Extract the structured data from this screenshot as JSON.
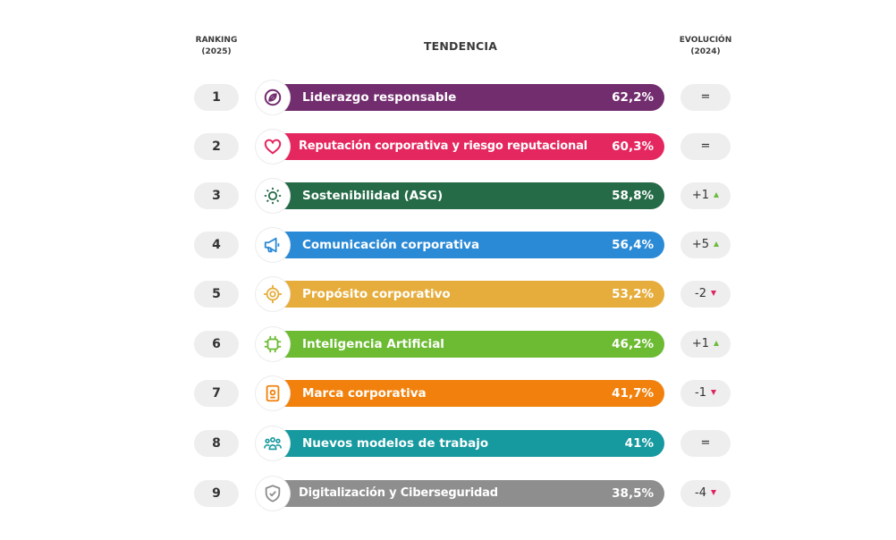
{
  "headers": {
    "ranking_line1": "RANKING",
    "ranking_line2": "(2025)",
    "trend": "TENDENCIA",
    "evolution_line1": "EVOLUCIÓN",
    "evolution_line2": "(2024)"
  },
  "chart_data": {
    "type": "bar",
    "title": "TENDENCIA",
    "categories": [
      "Liderazgo responsable",
      "Reputación corporativa y riesgo reputacional",
      "Sostenibilidad (ASG)",
      "Comunicación corporativa",
      "Propósito corporativo",
      "Inteligencia Artificial",
      "Marca corporativa",
      "Nuevos modelos de trabajo",
      "Digitalización y Ciberseguridad"
    ],
    "values": [
      62.2,
      60.3,
      58.8,
      56.4,
      53.2,
      46.2,
      41.7,
      41,
      38.5
    ],
    "value_labels": [
      "62,2%",
      "60,3%",
      "58,8%",
      "56,4%",
      "53,2%",
      "46,2%",
      "41,7%",
      "41%",
      "38,5%"
    ],
    "ranks": [
      "1",
      "2",
      "3",
      "4",
      "5",
      "6",
      "7",
      "8",
      "9"
    ],
    "evolution": [
      {
        "text": "=",
        "direction": "none"
      },
      {
        "text": "=",
        "direction": "none"
      },
      {
        "text": "+1",
        "direction": "up"
      },
      {
        "text": "+5",
        "direction": "up"
      },
      {
        "text": "-2",
        "direction": "down"
      },
      {
        "text": "+1",
        "direction": "up"
      },
      {
        "text": "-1",
        "direction": "down"
      },
      {
        "text": "=",
        "direction": "none"
      },
      {
        "text": "-4",
        "direction": "down"
      }
    ],
    "colors": [
      "#722d6e",
      "#e5275f",
      "#266b48",
      "#2b8ad6",
      "#e6ad3c",
      "#6cbb32",
      "#f1810c",
      "#16999f",
      "#8e8e8e"
    ],
    "icons": [
      "compass-icon",
      "heart-icon",
      "sun-icon",
      "megaphone-icon",
      "target-icon",
      "chip-icon",
      "badge-icon",
      "team-icon",
      "shield-check-icon"
    ],
    "xlabel": "",
    "ylabel": "",
    "ylim": [
      0,
      100
    ]
  }
}
